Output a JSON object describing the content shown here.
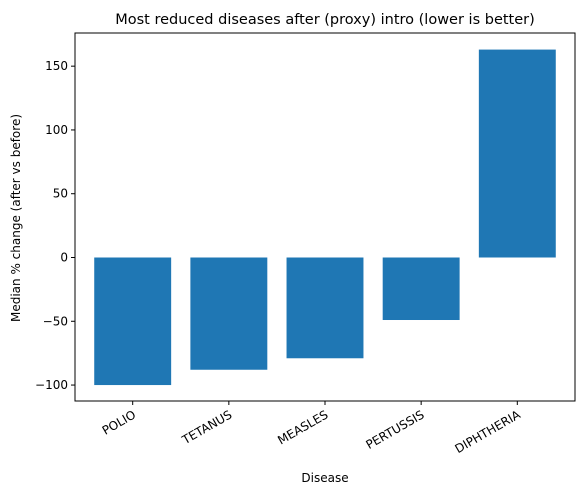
{
  "chart_data": {
    "type": "bar",
    "title": "Most reduced diseases after (proxy) intro (lower is better)",
    "xlabel": "Disease",
    "ylabel": "Median % change (after vs before)",
    "categories": [
      "POLIO",
      "TETANUS",
      "MEASLES",
      "PERTUSSIS",
      "DIPHTHERIA"
    ],
    "values": [
      -100,
      -88,
      -79,
      -49,
      163
    ],
    "ylim": [
      -112.5,
      176
    ],
    "yticks": [
      -100,
      -50,
      0,
      50,
      100,
      150
    ],
    "grid": false,
    "legend": "none",
    "colors": {
      "bar": "#1f77b4",
      "axes": "#000000",
      "background": "#ffffff"
    }
  }
}
